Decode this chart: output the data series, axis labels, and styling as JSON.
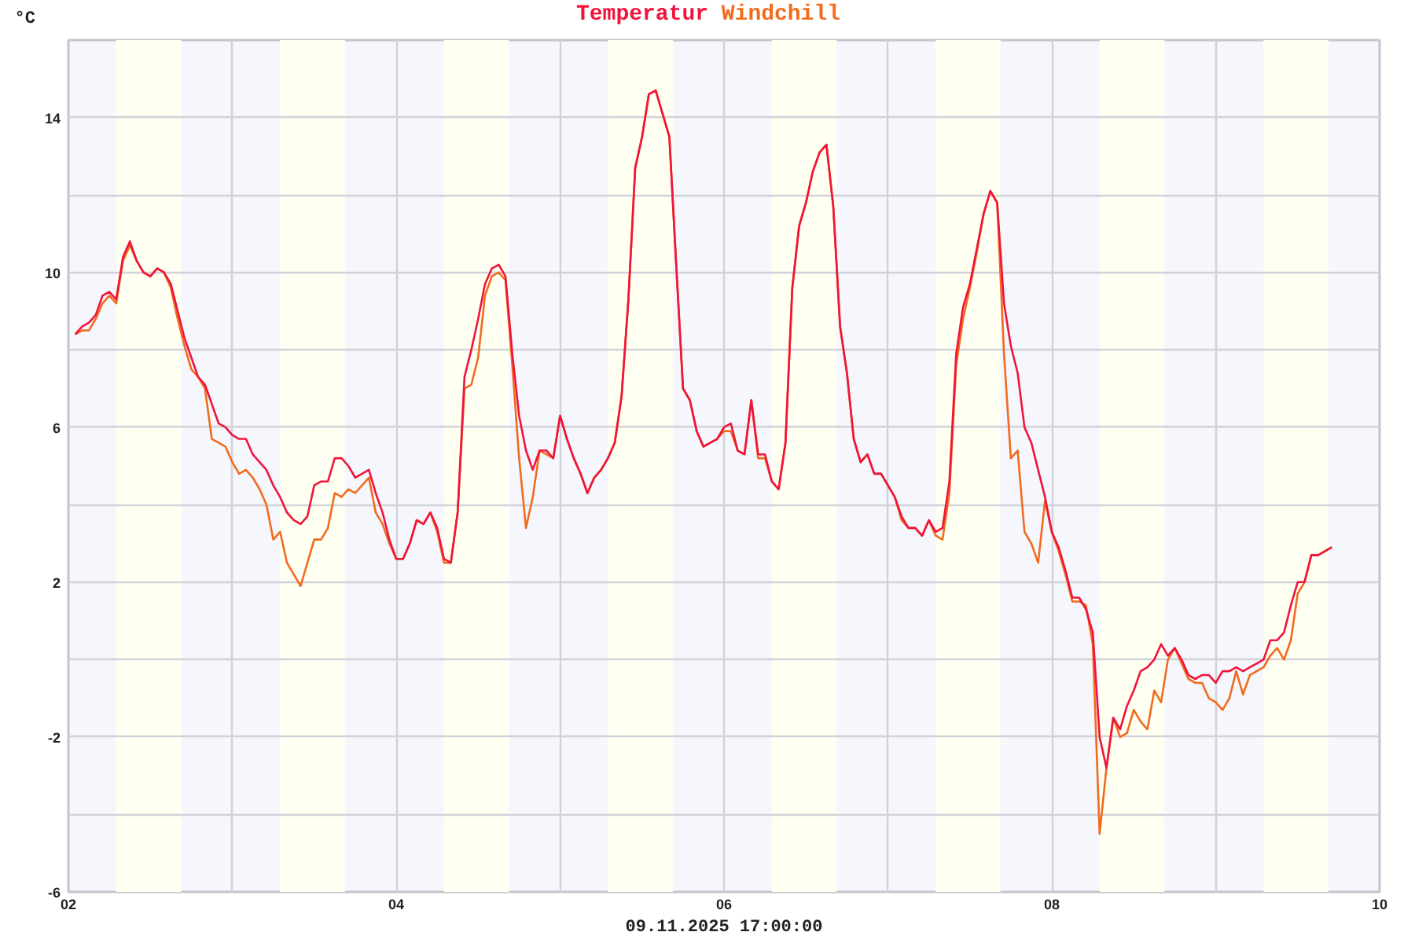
{
  "chart_data": {
    "type": "line",
    "ylabel": "°C",
    "grid": true,
    "annotations": [
      "09.11.2025 17:00:00"
    ],
    "xlim": [
      "2025-11-02",
      "2025-11-10"
    ],
    "xticks": [
      {
        "value": "2025-11-02",
        "label": "02"
      },
      {
        "value": "2025-11-03",
        "label": null
      },
      {
        "value": "2025-11-04",
        "label": "04"
      },
      {
        "value": "2025-11-05",
        "label": null
      },
      {
        "value": "2025-11-06",
        "label": "06"
      },
      {
        "value": "2025-11-07",
        "label": null
      },
      {
        "value": "2025-11-08",
        "label": "08"
      },
      {
        "value": "2025-11-09",
        "label": null
      },
      {
        "value": "2025-11-10",
        "label": "10"
      }
    ],
    "ylim": [
      -6,
      16
    ],
    "yticks": [
      -6,
      {
        "value": -4,
        "label": null
      },
      -2,
      {
        "value": 0,
        "label": null
      },
      2,
      {
        "value": 4,
        "label": null
      },
      6,
      {
        "value": 8,
        "label": null
      },
      10,
      {
        "value": 12,
        "label": null
      },
      14,
      {
        "value": 16,
        "label": null
      }
    ],
    "bands": [
      {
        "axis": "x",
        "from": "2025-11-02T07:00",
        "to": "2025-11-02T16:30",
        "color": "#fffff2"
      },
      {
        "axis": "x",
        "from": "2025-11-03T07:00",
        "to": "2025-11-03T16:30",
        "color": "#fffff2"
      },
      {
        "axis": "x",
        "from": "2025-11-04T07:00",
        "to": "2025-11-04T16:30",
        "color": "#fffff2"
      },
      {
        "axis": "x",
        "from": "2025-11-05T07:00",
        "to": "2025-11-05T16:30",
        "color": "#fffff2"
      },
      {
        "axis": "x",
        "from": "2025-11-06T07:00",
        "to": "2025-11-06T16:30",
        "color": "#fffff2"
      },
      {
        "axis": "x",
        "from": "2025-11-07T07:00",
        "to": "2025-11-07T16:30",
        "color": "#fffff2"
      },
      {
        "axis": "x",
        "from": "2025-11-08T07:00",
        "to": "2025-11-08T16:30",
        "color": "#fffff2"
      },
      {
        "axis": "x",
        "from": "2025-11-09T07:00",
        "to": "2025-11-09T16:30",
        "color": "#fffff2"
      }
    ],
    "x": [
      "2025-11-02T01:00",
      "2025-11-02T02:00",
      "2025-11-02T03:00",
      "2025-11-02T04:00",
      "2025-11-02T05:00",
      "2025-11-02T06:00",
      "2025-11-02T07:00",
      "2025-11-02T08:00",
      "2025-11-02T09:00",
      "2025-11-02T10:00",
      "2025-11-02T11:00",
      "2025-11-02T12:00",
      "2025-11-02T13:00",
      "2025-11-02T14:00",
      "2025-11-02T15:00",
      "2025-11-02T16:00",
      "2025-11-02T17:00",
      "2025-11-02T18:00",
      "2025-11-02T19:00",
      "2025-11-02T20:00",
      "2025-11-02T21:00",
      "2025-11-02T22:00",
      "2025-11-02T23:00",
      "2025-11-03T00:00",
      "2025-11-03T01:00",
      "2025-11-03T02:00",
      "2025-11-03T03:00",
      "2025-11-03T04:00",
      "2025-11-03T05:00",
      "2025-11-03T06:00",
      "2025-11-03T07:00",
      "2025-11-03T08:00",
      "2025-11-03T09:00",
      "2025-11-03T10:00",
      "2025-11-03T11:00",
      "2025-11-03T12:00",
      "2025-11-03T13:00",
      "2025-11-03T14:00",
      "2025-11-03T15:00",
      "2025-11-03T16:00",
      "2025-11-03T17:00",
      "2025-11-03T18:00",
      "2025-11-03T19:00",
      "2025-11-03T20:00",
      "2025-11-03T21:00",
      "2025-11-03T22:00",
      "2025-11-03T23:00",
      "2025-11-04T00:00",
      "2025-11-04T01:00",
      "2025-11-04T02:00",
      "2025-11-04T03:00",
      "2025-11-04T04:00",
      "2025-11-04T05:00",
      "2025-11-04T06:00",
      "2025-11-04T07:00",
      "2025-11-04T08:00",
      "2025-11-04T09:00",
      "2025-11-04T10:00",
      "2025-11-04T11:00",
      "2025-11-04T12:00",
      "2025-11-04T13:00",
      "2025-11-04T14:00",
      "2025-11-04T15:00",
      "2025-11-04T16:00",
      "2025-11-04T17:00",
      "2025-11-04T18:00",
      "2025-11-04T19:00",
      "2025-11-04T20:00",
      "2025-11-04T21:00",
      "2025-11-04T22:00",
      "2025-11-04T23:00",
      "2025-11-05T00:00",
      "2025-11-05T01:00",
      "2025-11-05T02:00",
      "2025-11-05T03:00",
      "2025-11-05T04:00",
      "2025-11-05T05:00",
      "2025-11-05T06:00",
      "2025-11-05T07:00",
      "2025-11-05T08:00",
      "2025-11-05T09:00",
      "2025-11-05T10:00",
      "2025-11-05T11:00",
      "2025-11-05T12:00",
      "2025-11-05T13:00",
      "2025-11-05T14:00",
      "2025-11-05T15:00",
      "2025-11-05T16:00",
      "2025-11-05T17:00",
      "2025-11-05T18:00",
      "2025-11-05T19:00",
      "2025-11-05T20:00",
      "2025-11-05T21:00",
      "2025-11-05T22:00",
      "2025-11-05T23:00",
      "2025-11-06T00:00",
      "2025-11-06T01:00",
      "2025-11-06T02:00",
      "2025-11-06T03:00",
      "2025-11-06T04:00",
      "2025-11-06T05:00",
      "2025-11-06T06:00",
      "2025-11-06T07:00",
      "2025-11-06T08:00",
      "2025-11-06T09:00",
      "2025-11-06T10:00",
      "2025-11-06T11:00",
      "2025-11-06T12:00",
      "2025-11-06T13:00",
      "2025-11-06T14:00",
      "2025-11-06T15:00",
      "2025-11-06T16:00",
      "2025-11-06T17:00",
      "2025-11-06T18:00",
      "2025-11-06T19:00",
      "2025-11-06T20:00",
      "2025-11-06T21:00",
      "2025-11-06T22:00",
      "2025-11-06T23:00",
      "2025-11-07T00:00",
      "2025-11-07T01:00",
      "2025-11-07T02:00",
      "2025-11-07T03:00",
      "2025-11-07T04:00",
      "2025-11-07T05:00",
      "2025-11-07T06:00",
      "2025-11-07T07:00",
      "2025-11-07T08:00",
      "2025-11-07T09:00",
      "2025-11-07T10:00",
      "2025-11-07T11:00",
      "2025-11-07T12:00",
      "2025-11-07T13:00",
      "2025-11-07T14:00",
      "2025-11-07T15:00",
      "2025-11-07T16:00",
      "2025-11-07T17:00",
      "2025-11-07T18:00",
      "2025-11-07T19:00",
      "2025-11-07T20:00",
      "2025-11-07T21:00",
      "2025-11-07T22:00",
      "2025-11-07T23:00",
      "2025-11-08T00:00",
      "2025-11-08T01:00",
      "2025-11-08T02:00",
      "2025-11-08T03:00",
      "2025-11-08T04:00",
      "2025-11-08T05:00",
      "2025-11-08T06:00",
      "2025-11-08T07:00",
      "2025-11-08T08:00",
      "2025-11-08T09:00",
      "2025-11-08T10:00",
      "2025-11-08T11:00",
      "2025-11-08T12:00",
      "2025-11-08T13:00",
      "2025-11-08T14:00",
      "2025-11-08T15:00",
      "2025-11-08T16:00",
      "2025-11-08T17:00",
      "2025-11-08T18:00",
      "2025-11-08T19:00",
      "2025-11-08T20:00",
      "2025-11-08T21:00",
      "2025-11-08T22:00",
      "2025-11-08T23:00",
      "2025-11-09T00:00",
      "2025-11-09T01:00",
      "2025-11-09T02:00",
      "2025-11-09T03:00",
      "2025-11-09T04:00",
      "2025-11-09T05:00",
      "2025-11-09T06:00",
      "2025-11-09T07:00",
      "2025-11-09T08:00",
      "2025-11-09T09:00",
      "2025-11-09T10:00",
      "2025-11-09T11:00",
      "2025-11-09T12:00",
      "2025-11-09T13:00",
      "2025-11-09T14:00",
      "2025-11-09T15:00",
      "2025-11-09T16:00",
      "2025-11-09T17:00"
    ],
    "series": [
      {
        "name": "Temperatur",
        "color": "#f0143c",
        "values": [
          8.4,
          8.6,
          8.7,
          8.9,
          9.4,
          9.5,
          9.3,
          10.4,
          10.8,
          10.3,
          10.0,
          9.9,
          10.1,
          10.0,
          9.7,
          9.0,
          8.3,
          7.8,
          7.3,
          7.1,
          6.6,
          6.1,
          6.0,
          5.8,
          5.7,
          5.7,
          5.3,
          5.1,
          4.9,
          4.5,
          4.2,
          3.8,
          3.6,
          3.5,
          3.7,
          4.5,
          4.6,
          4.6,
          5.2,
          5.2,
          5.0,
          4.7,
          4.8,
          4.9,
          4.3,
          3.8,
          3.1,
          2.6,
          2.6,
          3.0,
          3.6,
          3.5,
          3.8,
          3.4,
          2.6,
          2.5,
          3.8,
          7.3,
          8.0,
          8.8,
          9.7,
          10.1,
          10.2,
          9.9,
          7.9,
          6.3,
          5.4,
          4.9,
          5.4,
          5.4,
          5.2,
          6.3,
          5.7,
          5.2,
          4.8,
          4.3,
          4.7,
          4.9,
          5.2,
          5.6,
          6.8,
          9.3,
          12.7,
          13.5,
          14.6,
          14.7,
          14.1,
          13.5,
          10.2,
          7.0,
          6.7,
          5.9,
          5.5,
          5.6,
          5.7,
          6.0,
          6.1,
          5.4,
          5.3,
          6.7,
          5.3,
          5.3,
          4.6,
          4.4,
          5.6,
          9.6,
          11.2,
          11.8,
          12.6,
          13.1,
          13.3,
          11.7,
          8.6,
          7.4,
          5.7,
          5.1,
          5.3,
          4.8,
          4.8,
          4.5,
          4.2,
          3.7,
          3.4,
          3.4,
          3.2,
          3.6,
          3.3,
          3.4,
          4.6,
          7.9,
          9.1,
          9.7,
          10.6,
          11.5,
          12.1,
          11.8,
          9.2,
          8.1,
          7.4,
          6.0,
          5.6,
          4.9,
          4.2,
          3.3,
          2.9,
          2.3,
          1.6,
          1.6,
          1.3,
          0.7,
          -2.0,
          -2.8,
          -1.5,
          -1.8,
          -1.2,
          -0.8,
          -0.3,
          -0.2,
          0.0,
          0.4,
          0.1,
          0.3,
          0.0,
          -0.4,
          -0.5,
          -0.4,
          -0.4,
          -0.6,
          -0.3,
          -0.3,
          -0.2,
          -0.3,
          -0.2,
          -0.1,
          0.0,
          0.5,
          0.5,
          0.7,
          1.4,
          2.0,
          2.0,
          2.7,
          2.7,
          2.8,
          2.9
        ]
      },
      {
        "name": "Windchill",
        "color": "#f26b1d",
        "values": [
          8.4,
          8.5,
          8.5,
          8.8,
          9.2,
          9.4,
          9.2,
          10.3,
          10.7,
          10.3,
          10.0,
          9.9,
          10.1,
          10.0,
          9.6,
          8.8,
          8.1,
          7.5,
          7.3,
          7.0,
          5.7,
          5.6,
          5.5,
          5.1,
          4.8,
          4.9,
          4.7,
          4.4,
          4.0,
          3.1,
          3.3,
          2.5,
          2.2,
          1.9,
          2.5,
          3.1,
          3.1,
          3.4,
          4.3,
          4.2,
          4.4,
          4.3,
          4.5,
          4.7,
          3.8,
          3.5,
          3.0,
          2.6,
          2.6,
          3.0,
          3.6,
          3.5,
          3.8,
          3.3,
          2.5,
          2.5,
          3.8,
          7.0,
          7.1,
          7.8,
          9.4,
          9.9,
          10.0,
          9.8,
          7.6,
          5.2,
          3.4,
          4.2,
          5.4,
          5.3,
          5.2,
          6.3,
          5.7,
          5.2,
          4.8,
          4.3,
          4.7,
          4.9,
          5.2,
          5.6,
          6.8,
          9.3,
          12.7,
          13.5,
          14.6,
          14.7,
          14.1,
          13.5,
          10.2,
          7.0,
          6.7,
          5.9,
          5.5,
          5.6,
          5.7,
          5.9,
          5.9,
          5.4,
          5.3,
          6.7,
          5.2,
          5.2,
          4.6,
          4.4,
          5.6,
          9.6,
          11.2,
          11.8,
          12.6,
          13.1,
          13.3,
          11.7,
          8.6,
          7.4,
          5.7,
          5.1,
          5.3,
          4.8,
          4.8,
          4.5,
          4.2,
          3.6,
          3.4,
          3.4,
          3.2,
          3.6,
          3.2,
          3.1,
          4.3,
          7.6,
          8.8,
          9.6,
          10.5,
          11.5,
          12.1,
          11.8,
          7.9,
          5.2,
          5.4,
          3.3,
          3.0,
          2.5,
          4.1,
          3.3,
          2.8,
          2.2,
          1.5,
          1.5,
          1.4,
          0.4,
          -4.5,
          -2.8,
          -1.5,
          -2.0,
          -1.9,
          -1.3,
          -1.6,
          -1.8,
          -0.8,
          -1.1,
          0.0,
          0.3,
          -0.1,
          -0.5,
          -0.6,
          -0.6,
          -1.0,
          -1.1,
          -1.3,
          -1.0,
          -0.3,
          -0.9,
          -0.4,
          -0.3,
          -0.2,
          0.1,
          0.3,
          0.0,
          0.5,
          1.7,
          2.0,
          2.7,
          2.7,
          2.8,
          2.9
        ]
      }
    ]
  }
}
